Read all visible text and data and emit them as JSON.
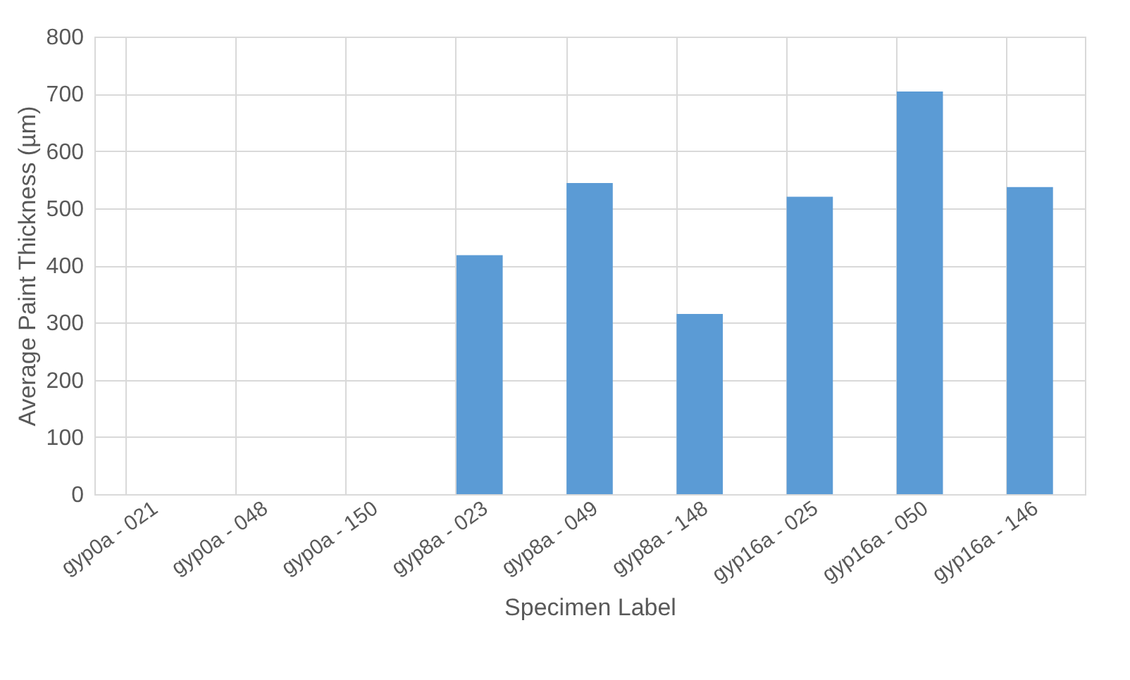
{
  "chart_data": {
    "type": "bar",
    "xlabel": "Specimen Label",
    "ylabel": "Average Paint Thickness (µm)",
    "categories": [
      "gyp0a - 021",
      "gyp0a - 048",
      "gyp0a - 150",
      "gyp8a - 023",
      "gyp8a - 049",
      "gyp8a - 148",
      "gyp16a - 025",
      "gyp16a - 050",
      "gyp16a - 146"
    ],
    "values": [
      0,
      0,
      0,
      418,
      544,
      315,
      520,
      704,
      537
    ],
    "color": "#5b9bd5",
    "ylim": [
      0,
      800
    ],
    "yticks": [
      0,
      100,
      200,
      300,
      400,
      500,
      600,
      700,
      800
    ],
    "grid": true
  }
}
